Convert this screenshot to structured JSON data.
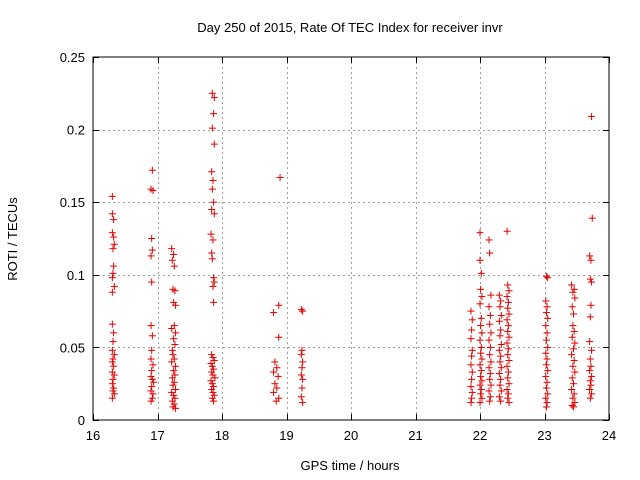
{
  "chart_data": {
    "type": "scatter",
    "title": "Day 250 of 2015, Rate Of TEC Index for receiver invr",
    "xlabel": "GPS time / hours",
    "ylabel": "ROTI / TECUs",
    "xlim": [
      16,
      24
    ],
    "ylim": [
      0,
      0.25
    ],
    "xticks": [
      16,
      17,
      18,
      19,
      20,
      21,
      22,
      23,
      24
    ],
    "xtick_labels": [
      "16",
      "17",
      "18",
      "19",
      "20",
      "21",
      "22",
      "23",
      "24"
    ],
    "yticks": [
      0,
      0.05,
      0.1,
      0.15,
      0.2,
      0.25
    ],
    "ytick_labels": [
      "0",
      "0.05",
      "0.1",
      "0.15",
      "0.2",
      "0.25"
    ],
    "grid": true,
    "marker": "+",
    "color": "#e00000",
    "series": [
      {
        "name": "ROTI",
        "points": [
          [
            16.3,
            0.154
          ],
          [
            16.3,
            0.142
          ],
          [
            16.32,
            0.138
          ],
          [
            16.3,
            0.129
          ],
          [
            16.32,
            0.126
          ],
          [
            16.33,
            0.121
          ],
          [
            16.31,
            0.118
          ],
          [
            16.32,
            0.106
          ],
          [
            16.31,
            0.101
          ],
          [
            16.3,
            0.098
          ],
          [
            16.33,
            0.092
          ],
          [
            16.3,
            0.088
          ],
          [
            16.3,
            0.066
          ],
          [
            16.32,
            0.06
          ],
          [
            16.31,
            0.054
          ],
          [
            16.3,
            0.048
          ],
          [
            16.33,
            0.045
          ],
          [
            16.31,
            0.042
          ],
          [
            16.3,
            0.04
          ],
          [
            16.32,
            0.037
          ],
          [
            16.3,
            0.033
          ],
          [
            16.33,
            0.031
          ],
          [
            16.31,
            0.028
          ],
          [
            16.3,
            0.025
          ],
          [
            16.32,
            0.022
          ],
          [
            16.31,
            0.02
          ],
          [
            16.33,
            0.018
          ],
          [
            16.3,
            0.015
          ],
          [
            16.92,
            0.172
          ],
          [
            16.9,
            0.159
          ],
          [
            16.93,
            0.158
          ],
          [
            16.91,
            0.125
          ],
          [
            16.92,
            0.117
          ],
          [
            16.9,
            0.113
          ],
          [
            16.91,
            0.095
          ],
          [
            16.9,
            0.065
          ],
          [
            16.92,
            0.058
          ],
          [
            16.91,
            0.048
          ],
          [
            16.9,
            0.042
          ],
          [
            16.93,
            0.038
          ],
          [
            16.91,
            0.034
          ],
          [
            16.9,
            0.03
          ],
          [
            16.92,
            0.028
          ],
          [
            16.94,
            0.026
          ],
          [
            16.91,
            0.023
          ],
          [
            16.9,
            0.02
          ],
          [
            16.93,
            0.018
          ],
          [
            16.92,
            0.015
          ],
          [
            16.9,
            0.013
          ],
          [
            17.22,
            0.118
          ],
          [
            17.25,
            0.114
          ],
          [
            17.23,
            0.11
          ],
          [
            17.26,
            0.106
          ],
          [
            17.24,
            0.09
          ],
          [
            17.27,
            0.089
          ],
          [
            17.25,
            0.081
          ],
          [
            17.28,
            0.079
          ],
          [
            17.26,
            0.065
          ],
          [
            17.22,
            0.063
          ],
          [
            17.28,
            0.06
          ],
          [
            17.25,
            0.056
          ],
          [
            17.27,
            0.052
          ],
          [
            17.23,
            0.048
          ],
          [
            17.24,
            0.045
          ],
          [
            17.26,
            0.042
          ],
          [
            17.22,
            0.04
          ],
          [
            17.28,
            0.037
          ],
          [
            17.25,
            0.034
          ],
          [
            17.27,
            0.031
          ],
          [
            17.23,
            0.029
          ],
          [
            17.26,
            0.026
          ],
          [
            17.24,
            0.024
          ],
          [
            17.28,
            0.021
          ],
          [
            17.22,
            0.019
          ],
          [
            17.25,
            0.017
          ],
          [
            17.27,
            0.015
          ],
          [
            17.23,
            0.013
          ],
          [
            17.26,
            0.011
          ],
          [
            17.24,
            0.009
          ],
          [
            17.28,
            0.008
          ],
          [
            17.85,
            0.225
          ],
          [
            17.88,
            0.222
          ],
          [
            17.87,
            0.211
          ],
          [
            17.85,
            0.201
          ],
          [
            17.88,
            0.19
          ],
          [
            17.84,
            0.171
          ],
          [
            17.86,
            0.165
          ],
          [
            17.85,
            0.159
          ],
          [
            17.87,
            0.15
          ],
          [
            17.84,
            0.145
          ],
          [
            17.88,
            0.142
          ],
          [
            17.83,
            0.128
          ],
          [
            17.86,
            0.124
          ],
          [
            17.84,
            0.115
          ],
          [
            17.85,
            0.111
          ],
          [
            17.87,
            0.098
          ],
          [
            17.88,
            0.095
          ],
          [
            17.86,
            0.092
          ],
          [
            17.87,
            0.081
          ],
          [
            17.84,
            0.045
          ],
          [
            17.86,
            0.043
          ],
          [
            17.88,
            0.041
          ],
          [
            17.83,
            0.039
          ],
          [
            17.85,
            0.037
          ],
          [
            17.87,
            0.035
          ],
          [
            17.84,
            0.033
          ],
          [
            17.86,
            0.031
          ],
          [
            17.89,
            0.029
          ],
          [
            17.83,
            0.027
          ],
          [
            17.85,
            0.025
          ],
          [
            17.87,
            0.023
          ],
          [
            17.84,
            0.021
          ],
          [
            17.86,
            0.019
          ],
          [
            17.88,
            0.017
          ],
          [
            17.85,
            0.015
          ],
          [
            17.87,
            0.013
          ],
          [
            18.8,
            0.074
          ],
          [
            18.88,
            0.079
          ],
          [
            18.9,
            0.167
          ],
          [
            18.88,
            0.057
          ],
          [
            18.82,
            0.04
          ],
          [
            18.85,
            0.036
          ],
          [
            18.8,
            0.033
          ],
          [
            18.87,
            0.03
          ],
          [
            18.82,
            0.025
          ],
          [
            18.85,
            0.022
          ],
          [
            18.8,
            0.019
          ],
          [
            18.88,
            0.015
          ],
          [
            18.84,
            0.013
          ],
          [
            19.23,
            0.076
          ],
          [
            19.25,
            0.075
          ],
          [
            19.24,
            0.048
          ],
          [
            19.23,
            0.045
          ],
          [
            19.25,
            0.04
          ],
          [
            19.24,
            0.036
          ],
          [
            19.23,
            0.031
          ],
          [
            19.25,
            0.028
          ],
          [
            19.24,
            0.022
          ],
          [
            19.23,
            0.016
          ],
          [
            19.25,
            0.012
          ],
          [
            21.86,
            0.075
          ],
          [
            21.88,
            0.069
          ],
          [
            21.87,
            0.062
          ],
          [
            21.86,
            0.056
          ],
          [
            21.88,
            0.048
          ],
          [
            21.87,
            0.044
          ],
          [
            21.86,
            0.038
          ],
          [
            21.88,
            0.033
          ],
          [
            21.87,
            0.028
          ],
          [
            21.86,
            0.023
          ],
          [
            21.88,
            0.019
          ],
          [
            21.87,
            0.015
          ],
          [
            21.86,
            0.012
          ],
          [
            22.0,
            0.129
          ],
          [
            22.0,
            0.11
          ],
          [
            22.02,
            0.101
          ],
          [
            22.01,
            0.09
          ],
          [
            22.03,
            0.085
          ],
          [
            22.0,
            0.08
          ],
          [
            22.02,
            0.07
          ],
          [
            22.01,
            0.065
          ],
          [
            22.03,
            0.06
          ],
          [
            22.0,
            0.055
          ],
          [
            22.02,
            0.05
          ],
          [
            22.01,
            0.046
          ],
          [
            22.03,
            0.042
          ],
          [
            22.0,
            0.038
          ],
          [
            22.02,
            0.034
          ],
          [
            22.01,
            0.03
          ],
          [
            22.03,
            0.027
          ],
          [
            22.0,
            0.024
          ],
          [
            22.02,
            0.021
          ],
          [
            22.01,
            0.018
          ],
          [
            22.03,
            0.015
          ],
          [
            22.0,
            0.012
          ],
          [
            22.14,
            0.124
          ],
          [
            22.15,
            0.115
          ],
          [
            22.17,
            0.086
          ],
          [
            22.14,
            0.078
          ],
          [
            22.16,
            0.072
          ],
          [
            22.15,
            0.066
          ],
          [
            22.17,
            0.06
          ],
          [
            22.14,
            0.055
          ],
          [
            22.16,
            0.05
          ],
          [
            22.15,
            0.045
          ],
          [
            22.17,
            0.04
          ],
          [
            22.14,
            0.036
          ],
          [
            22.16,
            0.032
          ],
          [
            22.15,
            0.028
          ],
          [
            22.17,
            0.024
          ],
          [
            22.14,
            0.02
          ],
          [
            22.16,
            0.016
          ],
          [
            22.15,
            0.013
          ],
          [
            22.3,
            0.086
          ],
          [
            22.32,
            0.082
          ],
          [
            22.31,
            0.078
          ],
          [
            22.33,
            0.072
          ],
          [
            22.3,
            0.068
          ],
          [
            22.32,
            0.062
          ],
          [
            22.31,
            0.058
          ],
          [
            22.33,
            0.052
          ],
          [
            22.3,
            0.048
          ],
          [
            22.32,
            0.044
          ],
          [
            22.31,
            0.04
          ],
          [
            22.33,
            0.036
          ],
          [
            22.3,
            0.032
          ],
          [
            22.32,
            0.028
          ],
          [
            22.31,
            0.024
          ],
          [
            22.33,
            0.02
          ],
          [
            22.3,
            0.016
          ],
          [
            22.32,
            0.013
          ],
          [
            22.42,
            0.13
          ],
          [
            22.43,
            0.093
          ],
          [
            22.45,
            0.089
          ],
          [
            22.42,
            0.085
          ],
          [
            22.44,
            0.081
          ],
          [
            22.43,
            0.077
          ],
          [
            22.45,
            0.073
          ],
          [
            22.42,
            0.069
          ],
          [
            22.44,
            0.065
          ],
          [
            22.43,
            0.061
          ],
          [
            22.45,
            0.057
          ],
          [
            22.42,
            0.053
          ],
          [
            22.44,
            0.049
          ],
          [
            22.43,
            0.045
          ],
          [
            22.45,
            0.041
          ],
          [
            22.42,
            0.037
          ],
          [
            22.44,
            0.033
          ],
          [
            22.43,
            0.029
          ],
          [
            22.45,
            0.025
          ],
          [
            22.42,
            0.021
          ],
          [
            22.44,
            0.018
          ],
          [
            22.43,
            0.015
          ],
          [
            22.45,
            0.012
          ],
          [
            23.03,
            0.099
          ],
          [
            23.05,
            0.098
          ],
          [
            23.02,
            0.082
          ],
          [
            23.04,
            0.078
          ],
          [
            23.03,
            0.074
          ],
          [
            23.05,
            0.07
          ],
          [
            23.02,
            0.065
          ],
          [
            23.04,
            0.06
          ],
          [
            23.03,
            0.055
          ],
          [
            23.05,
            0.05
          ],
          [
            23.02,
            0.046
          ],
          [
            23.04,
            0.042
          ],
          [
            23.03,
            0.038
          ],
          [
            23.05,
            0.034
          ],
          [
            23.02,
            0.03
          ],
          [
            23.04,
            0.026
          ],
          [
            23.03,
            0.022
          ],
          [
            23.05,
            0.018
          ],
          [
            23.02,
            0.015
          ],
          [
            23.04,
            0.012
          ],
          [
            23.03,
            0.009
          ],
          [
            23.42,
            0.093
          ],
          [
            23.46,
            0.09
          ],
          [
            23.44,
            0.088
          ],
          [
            23.47,
            0.084
          ],
          [
            23.43,
            0.078
          ],
          [
            23.45,
            0.073
          ],
          [
            23.44,
            0.065
          ],
          [
            23.46,
            0.061
          ],
          [
            23.43,
            0.057
          ],
          [
            23.47,
            0.053
          ],
          [
            23.45,
            0.049
          ],
          [
            23.42,
            0.045
          ],
          [
            23.46,
            0.041
          ],
          [
            23.44,
            0.037
          ],
          [
            23.47,
            0.033
          ],
          [
            23.43,
            0.029
          ],
          [
            23.45,
            0.025
          ],
          [
            23.42,
            0.021
          ],
          [
            23.46,
            0.018
          ],
          [
            23.44,
            0.015
          ],
          [
            23.47,
            0.012
          ],
          [
            23.43,
            0.01
          ],
          [
            23.45,
            0.009
          ],
          [
            23.73,
            0.209
          ],
          [
            23.74,
            0.139
          ],
          [
            23.7,
            0.113
          ],
          [
            23.72,
            0.11
          ],
          [
            23.71,
            0.097
          ],
          [
            23.73,
            0.095
          ],
          [
            23.72,
            0.079
          ],
          [
            23.71,
            0.071
          ],
          [
            23.7,
            0.054
          ],
          [
            23.73,
            0.048
          ],
          [
            23.71,
            0.042
          ],
          [
            23.72,
            0.037
          ],
          [
            23.7,
            0.034
          ],
          [
            23.73,
            0.03
          ],
          [
            23.71,
            0.027
          ],
          [
            23.72,
            0.024
          ],
          [
            23.7,
            0.021
          ],
          [
            23.73,
            0.018
          ],
          [
            23.71,
            0.015
          ]
        ]
      }
    ]
  }
}
